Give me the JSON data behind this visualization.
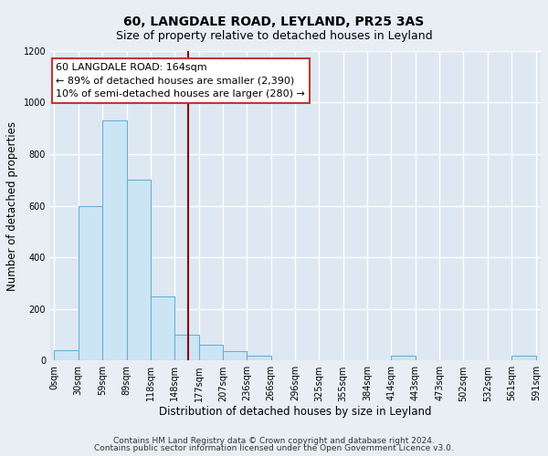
{
  "title": "60, LANGDALE ROAD, LEYLAND, PR25 3AS",
  "subtitle": "Size of property relative to detached houses in Leyland",
  "xlabel": "Distribution of detached houses by size in Leyland",
  "ylabel": "Number of detached properties",
  "footnote1": "Contains HM Land Registry data © Crown copyright and database right 2024.",
  "footnote2": "Contains public sector information licensed under the Open Government Licence v3.0.",
  "bin_edges": [
    0,
    29.5,
    59,
    88.5,
    118,
    147.5,
    177,
    206.5,
    236,
    265.5,
    295,
    324.5,
    354,
    383.5,
    413,
    442.5,
    472,
    501.5,
    531,
    560.5,
    591
  ],
  "bin_heights": [
    40,
    600,
    930,
    700,
    250,
    100,
    60,
    35,
    20,
    0,
    0,
    0,
    0,
    0,
    20,
    0,
    0,
    0,
    0,
    20
  ],
  "bar_facecolor": "#cce5f5",
  "bar_edgecolor": "#6aafd6",
  "vline_x": 164,
  "vline_color": "#8b0000",
  "annotation_line1": "60 LANGDALE ROAD: 164sqm",
  "annotation_line2": "← 89% of detached houses are smaller (2,390)",
  "annotation_line3": "10% of semi-detached houses are larger (280) →",
  "annotation_box_edgecolor": "#c0392b",
  "annotation_box_facecolor": "#ffffff",
  "xlim_left": -5,
  "xlim_right": 596,
  "ylim": [
    0,
    1200
  ],
  "yticks": [
    0,
    200,
    400,
    600,
    800,
    1000,
    1200
  ],
  "xtick_labels": [
    "0sqm",
    "30sqm",
    "59sqm",
    "89sqm",
    "118sqm",
    "148sqm",
    "177sqm",
    "207sqm",
    "236sqm",
    "266sqm",
    "296sqm",
    "325sqm",
    "355sqm",
    "384sqm",
    "414sqm",
    "443sqm",
    "473sqm",
    "502sqm",
    "532sqm",
    "561sqm",
    "591sqm"
  ],
  "xtick_positions": [
    0,
    29.5,
    59,
    88.5,
    118,
    147.5,
    177,
    206.5,
    236,
    265.5,
    295,
    324.5,
    354,
    383.5,
    413,
    442.5,
    472,
    501.5,
    531,
    560.5,
    591
  ],
  "fig_background": "#e8eef4",
  "ax_background": "#dde8f2",
  "grid_color": "#ffffff",
  "title_fontsize": 10,
  "subtitle_fontsize": 9,
  "axis_label_fontsize": 8.5,
  "tick_fontsize": 7,
  "annotation_fontsize": 8,
  "footnote_fontsize": 6.5
}
